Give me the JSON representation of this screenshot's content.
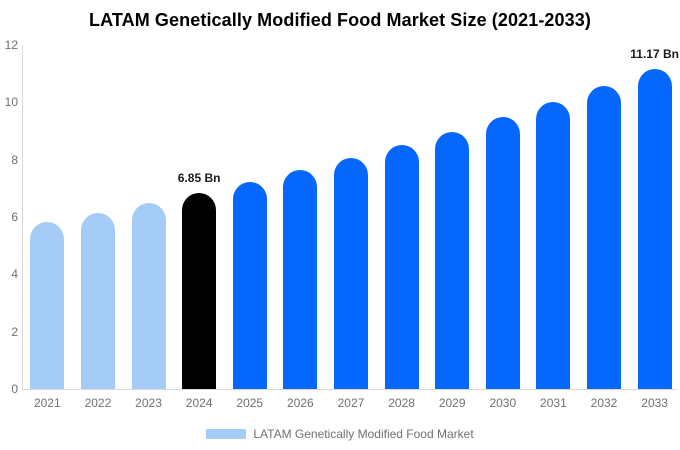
{
  "title": "LATAM Genetically Modified Food Market Size (2021-2033)",
  "legend": {
    "label": "LATAM Genetically Modified Food Market",
    "swatch_color": "#a5ccf7"
  },
  "colors": {
    "historical": "#a5ccf7",
    "base_year": "#000000",
    "forecast": "#0667fd",
    "axis_text": "#707070",
    "axis_line": "#d9d9d9",
    "value_label": "#1a1a1a"
  },
  "chart_data": {
    "type": "bar",
    "title": "LATAM Genetically Modified Food Market Size (2021-2033)",
    "categories": [
      "2021",
      "2022",
      "2023",
      "2024",
      "2025",
      "2026",
      "2027",
      "2028",
      "2029",
      "2030",
      "2031",
      "2032",
      "2033"
    ],
    "values": [
      5.82,
      6.15,
      6.49,
      6.85,
      7.23,
      7.63,
      8.06,
      8.51,
      8.98,
      9.48,
      10.01,
      10.57,
      11.17
    ],
    "unit": "Bn",
    "bar_colors": [
      "historical",
      "historical",
      "historical",
      "base_year",
      "forecast",
      "forecast",
      "forecast",
      "forecast",
      "forecast",
      "forecast",
      "forecast",
      "forecast",
      "forecast"
    ],
    "annotations": [
      {
        "year": "2024",
        "text": "6.85 Bn"
      },
      {
        "year": "2033",
        "text": "11.17 Bn"
      }
    ],
    "xlabel": "",
    "ylabel": "",
    "ylim": [
      0,
      12
    ],
    "yticks": [
      0,
      2,
      4,
      6,
      8,
      10,
      12
    ],
    "grid": false,
    "legend_position": "bottom",
    "legend_entries": [
      "LATAM Genetically Modified Food Market"
    ]
  }
}
